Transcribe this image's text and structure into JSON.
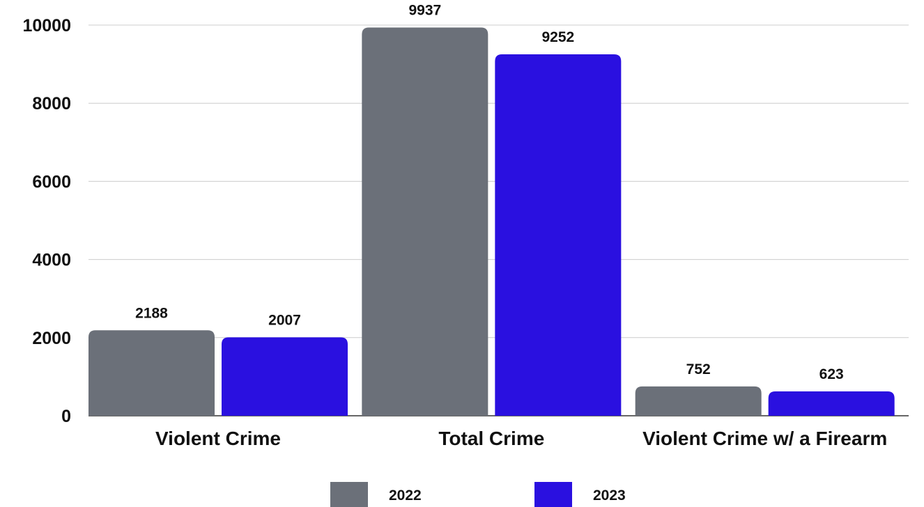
{
  "chart_data": {
    "type": "bar",
    "title": "",
    "xlabel": "",
    "ylabel": "",
    "categories": [
      "Violent Crime",
      "Total Crime",
      "Violent Crime w/ a Firearm"
    ],
    "series": [
      {
        "name": "2022",
        "color": "#6b7079",
        "values": [
          2188,
          9937,
          752
        ]
      },
      {
        "name": "2023",
        "color": "#2a10e0",
        "values": [
          2007,
          9252,
          623
        ]
      }
    ],
    "ylim": [
      0,
      10000
    ],
    "yticks": [
      0,
      2000,
      4000,
      6000,
      8000,
      10000
    ],
    "grid": true,
    "legend_position": "bottom",
    "data_labels": true
  }
}
